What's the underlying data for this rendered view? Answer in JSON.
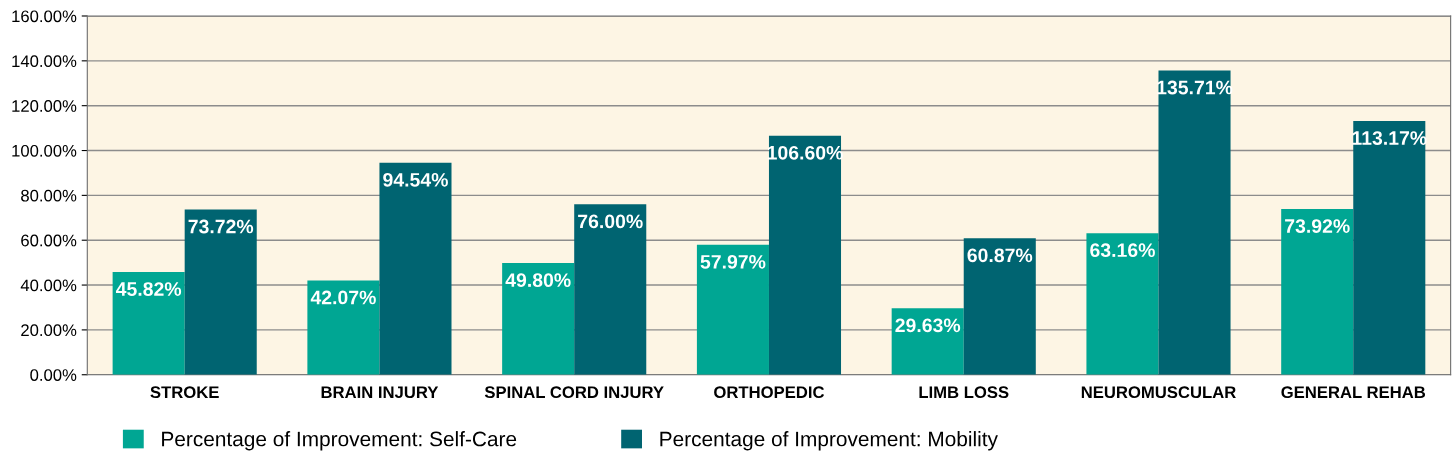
{
  "chart_data": {
    "type": "bar",
    "categories": [
      "STROKE",
      "BRAIN INJURY",
      "SPINAL CORD INJURY",
      "ORTHOPEDIC",
      "LIMB LOSS",
      "NEUROMUSCULAR",
      "GENERAL REHAB"
    ],
    "series": [
      {
        "name": "Percentage of Improvement: Self-Care",
        "color": "#00a693",
        "values": [
          45.82,
          42.07,
          49.8,
          57.97,
          29.63,
          63.16,
          73.92
        ],
        "value_labels": [
          "45.82%",
          "42.07%",
          "49.80%",
          "57.97%",
          "29.63%",
          "63.16%",
          "73.92%"
        ]
      },
      {
        "name": "Percentage of Improvement: Mobility",
        "color": "#006471",
        "values": [
          73.72,
          94.54,
          76.0,
          106.6,
          60.87,
          135.71,
          113.17
        ],
        "value_labels": [
          "73.72%",
          "94.54%",
          "76.00%",
          "106.60%",
          "60.87%",
          "135.71%",
          "113.17%"
        ]
      }
    ],
    "ylim": [
      0,
      160
    ],
    "yticks": [
      {
        "value": 0,
        "label": "0.00%"
      },
      {
        "value": 20,
        "label": "20.00%"
      },
      {
        "value": 40,
        "label": "40.00%"
      },
      {
        "value": 60,
        "label": "60.00%"
      },
      {
        "value": 80,
        "label": "80.00%"
      },
      {
        "value": 100,
        "label": "100.00%"
      },
      {
        "value": 120,
        "label": "120.00%"
      },
      {
        "value": 140,
        "label": "140.00%"
      },
      {
        "value": 160,
        "label": "160.00%"
      }
    ],
    "grid": "y",
    "legend": "bottom"
  }
}
